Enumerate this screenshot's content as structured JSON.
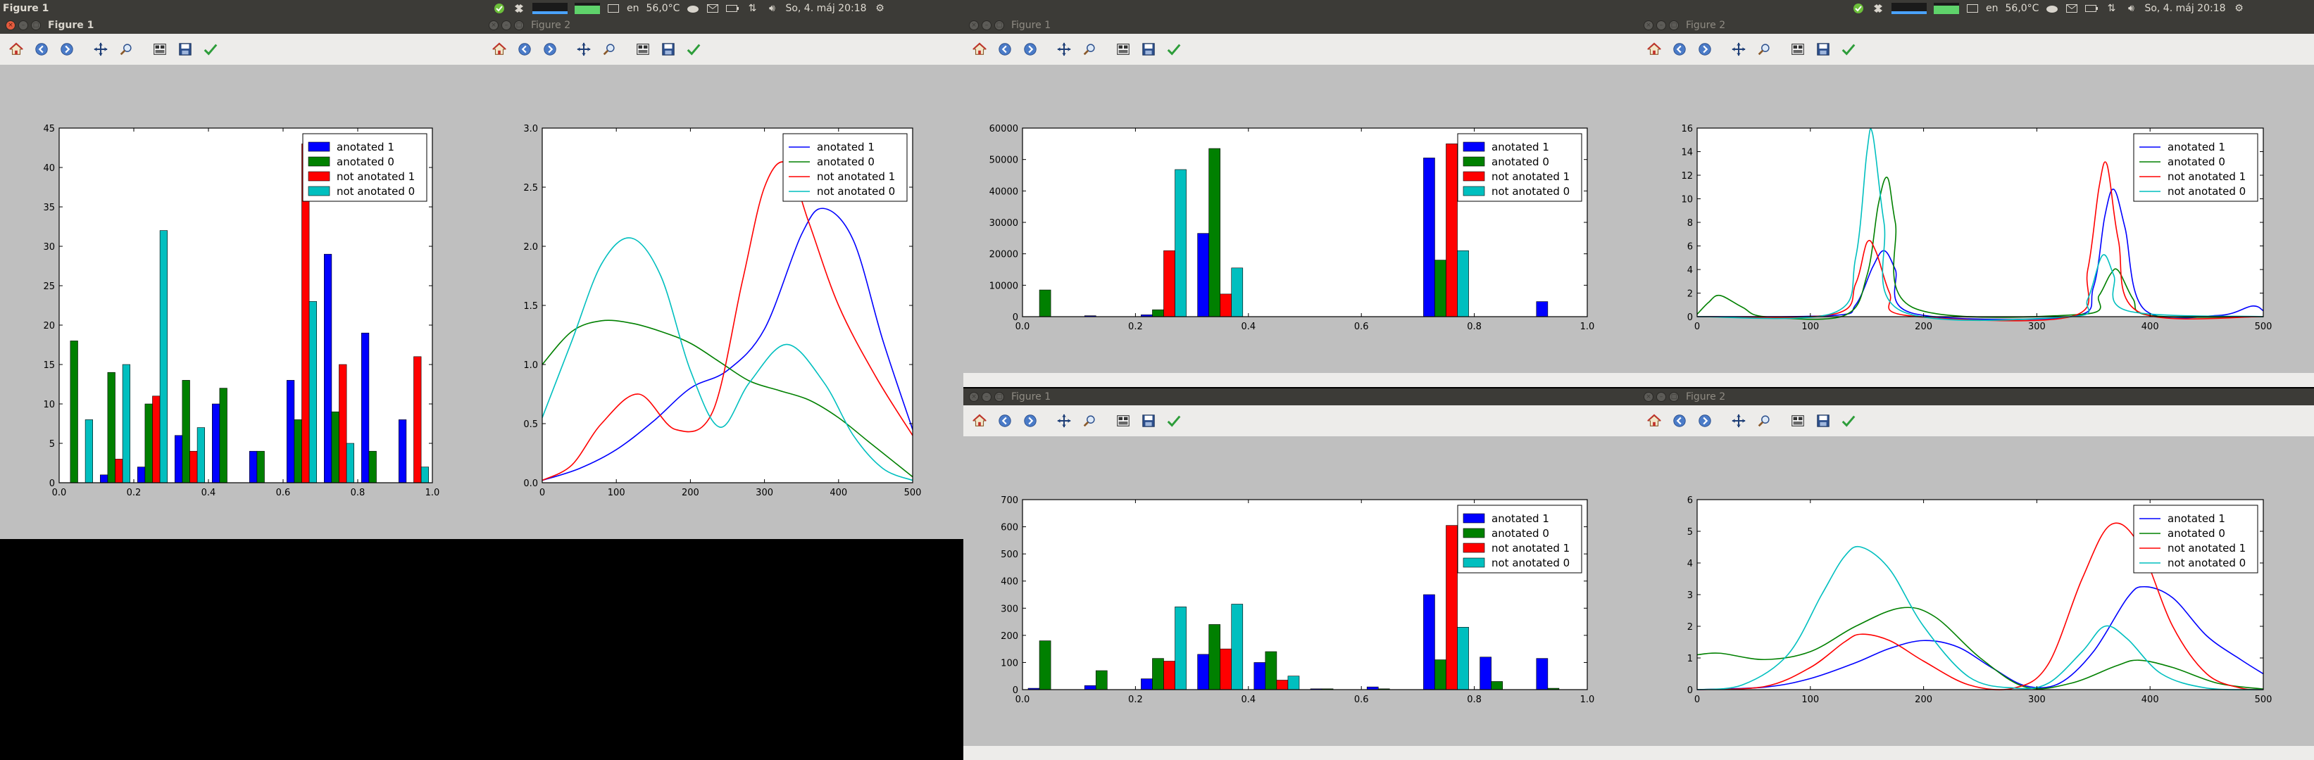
{
  "panel_left": {
    "app_title": "Figure 1",
    "lang": "en",
    "temp": "56,0°C",
    "datetime": "So, 4. máj 20:18"
  },
  "panel_right": {
    "lang": "en",
    "temp": "56,0°C",
    "datetime": "So, 4. máj 20:18"
  },
  "legend_labels": [
    "anotated 1",
    "anotated 0",
    "not anotated 1",
    "not anotated 0"
  ],
  "colors": {
    "anotated 1": "#0000ff",
    "anotated 0": "#008000",
    "not anotated 1": "#ff0000",
    "not anotated 0": "#00bfbf"
  },
  "windows": [
    {
      "title": "Figure 1",
      "active": true
    },
    {
      "title": "Figure 2",
      "active": false
    },
    {
      "title": "Figure 1",
      "active": false
    },
    {
      "title": "Figure 2",
      "active": false
    },
    {
      "title": "Figure 1",
      "active": false
    },
    {
      "title": "Figure 2",
      "active": false
    }
  ],
  "toolbar_icons": [
    "home-icon",
    "back-icon",
    "forward-icon",
    "pan-icon",
    "zoom-icon",
    "subplots-icon",
    "save-icon",
    "check-icon"
  ],
  "chart_data": [
    {
      "type": "bar",
      "window": 0,
      "legend": "top-right",
      "bins": [
        0.05,
        0.15,
        0.25,
        0.35,
        0.45,
        0.55,
        0.65,
        0.75,
        0.85,
        0.95
      ],
      "xlim": [
        0.0,
        1.0
      ],
      "ylim": [
        0,
        45
      ],
      "xticks": [
        "0.0",
        "0.2",
        "0.4",
        "0.6",
        "0.8",
        "1.0"
      ],
      "yticks": [
        "0",
        "5",
        "10",
        "15",
        "20",
        "25",
        "30",
        "35",
        "40",
        "45"
      ],
      "ytick_values": [
        0,
        5,
        10,
        15,
        20,
        25,
        30,
        35,
        40,
        45
      ],
      "series": [
        {
          "name": "anotated 1",
          "values": [
            0,
            1,
            2,
            6,
            10,
            4,
            13,
            29,
            19,
            8
          ]
        },
        {
          "name": "anotated 0",
          "values": [
            18,
            14,
            10,
            13,
            12,
            4,
            8,
            9,
            4,
            0
          ]
        },
        {
          "name": "not anotated 1",
          "values": [
            0,
            3,
            11,
            4,
            0,
            0,
            43,
            15,
            0,
            16
          ]
        },
        {
          "name": "not anotated 0",
          "values": [
            8,
            15,
            32,
            7,
            0,
            0,
            23,
            5,
            0,
            2
          ]
        }
      ]
    },
    {
      "type": "line",
      "window": 1,
      "legend": "top-right",
      "xlim": [
        0,
        500
      ],
      "ylim": [
        0,
        3.0
      ],
      "xticks": [
        "0",
        "100",
        "200",
        "300",
        "400",
        "500"
      ],
      "yticks": [
        "0.0",
        "0.5",
        "1.0",
        "1.5",
        "2.0",
        "2.5",
        "3.0"
      ],
      "ytick_values": [
        0,
        0.5,
        1.0,
        1.5,
        2.0,
        2.5,
        3.0
      ],
      "series": [
        {
          "name": "anotated 1",
          "x": [
            0,
            50,
            100,
            150,
            200,
            250,
            300,
            350,
            380,
            420,
            460,
            500
          ],
          "y": [
            0.02,
            0.12,
            0.28,
            0.52,
            0.8,
            0.95,
            1.3,
            2.1,
            2.32,
            2.05,
            1.2,
            0.45
          ]
        },
        {
          "name": "anotated 0",
          "x": [
            0,
            40,
            80,
            120,
            160,
            200,
            240,
            280,
            320,
            360,
            400,
            440,
            480,
            500
          ],
          "y": [
            1.0,
            1.28,
            1.37,
            1.35,
            1.28,
            1.18,
            1.02,
            0.86,
            0.78,
            0.7,
            0.55,
            0.35,
            0.15,
            0.05
          ]
        },
        {
          "name": "not anotated 1",
          "x": [
            0,
            40,
            80,
            130,
            180,
            230,
            270,
            300,
            330,
            360,
            400,
            450,
            500
          ],
          "y": [
            0.02,
            0.15,
            0.5,
            0.75,
            0.45,
            0.6,
            1.7,
            2.5,
            2.7,
            2.2,
            1.5,
            0.9,
            0.4
          ]
        },
        {
          "name": "not anotated 0",
          "x": [
            0,
            40,
            80,
            120,
            160,
            200,
            240,
            280,
            330,
            380,
            420,
            460,
            500
          ],
          "y": [
            0.55,
            1.2,
            1.85,
            2.07,
            1.75,
            0.95,
            0.47,
            0.85,
            1.17,
            0.85,
            0.4,
            0.12,
            0.02
          ]
        }
      ]
    },
    {
      "type": "bar",
      "window": 2,
      "legend": "top-right",
      "bins": [
        0.05,
        0.15,
        0.25,
        0.35,
        0.45,
        0.55,
        0.65,
        0.75,
        0.85,
        0.95
      ],
      "xlim": [
        0.0,
        1.0
      ],
      "ylim": [
        0,
        60000
      ],
      "xticks": [
        "0.0",
        "0.2",
        "0.4",
        "0.6",
        "0.8",
        "1.0"
      ],
      "yticks": [
        "0",
        "10000",
        "20000",
        "30000",
        "40000",
        "50000",
        "60000"
      ],
      "ytick_values": [
        0,
        10000,
        20000,
        30000,
        40000,
        50000,
        60000
      ],
      "series": [
        {
          "name": "anotated 1",
          "values": [
            0,
            300,
            600,
            26500,
            0,
            0,
            0,
            50500,
            0,
            4800
          ]
        },
        {
          "name": "anotated 0",
          "values": [
            8500,
            0,
            2200,
            53500,
            0,
            0,
            0,
            18000,
            0,
            0
          ]
        },
        {
          "name": "not anotated 1",
          "values": [
            0,
            0,
            21000,
            7200,
            0,
            0,
            0,
            55000,
            0,
            0
          ]
        },
        {
          "name": "not anotated 0",
          "values": [
            0,
            0,
            46800,
            15500,
            0,
            0,
            0,
            21000,
            0,
            0
          ]
        }
      ]
    },
    {
      "type": "line",
      "window": 3,
      "legend": "top-right",
      "xlim": [
        0,
        500
      ],
      "ylim": [
        0,
        16
      ],
      "xticks": [
        "0",
        "100",
        "200",
        "300",
        "400",
        "500"
      ],
      "yticks": [
        "0",
        "2",
        "4",
        "6",
        "8",
        "10",
        "12",
        "14",
        "16"
      ],
      "ytick_values": [
        0,
        2,
        4,
        6,
        8,
        10,
        12,
        14,
        16
      ],
      "series": [
        {
          "name": "anotated 1",
          "x": [
            0,
            120,
            140,
            155,
            165,
            175,
            190,
            330,
            350,
            360,
            368,
            378,
            395,
            460,
            490,
            500
          ],
          "y": [
            0,
            0.1,
            1.0,
            4.2,
            5.6,
            4.0,
            0.3,
            0,
            2.5,
            8.5,
            10.8,
            7.5,
            0.6,
            0.1,
            0.9,
            0.5
          ]
        },
        {
          "name": "anotated 0",
          "x": [
            0,
            10,
            20,
            40,
            60,
            130,
            150,
            160,
            168,
            175,
            190,
            340,
            355,
            365,
            372,
            385,
            400,
            500
          ],
          "y": [
            0.2,
            1.2,
            1.8,
            0.8,
            0,
            0.1,
            3.5,
            9.5,
            11.8,
            8.0,
            0.8,
            0.2,
            1.8,
            3.6,
            3.9,
            1.5,
            0.1,
            0
          ]
        },
        {
          "name": "not anotated 1",
          "x": [
            0,
            120,
            140,
            150,
            158,
            170,
            185,
            330,
            345,
            355,
            362,
            372,
            390,
            500
          ],
          "y": [
            0,
            0.2,
            2.8,
            6.3,
            5.5,
            2.0,
            0.1,
            0,
            4.0,
            11.0,
            12.9,
            6.5,
            0.4,
            0
          ]
        },
        {
          "name": "not anotated 0",
          "x": [
            0,
            120,
            140,
            150,
            155,
            165,
            180,
            330,
            345,
            358,
            368,
            380,
            500
          ],
          "y": [
            0,
            0.3,
            5.0,
            14.0,
            15.5,
            8.0,
            0.5,
            0,
            1.5,
            5.2,
            3.5,
            0.5,
            0
          ]
        }
      ]
    },
    {
      "type": "bar",
      "window": 4,
      "legend": "top-right",
      "bins": [
        0.05,
        0.15,
        0.25,
        0.35,
        0.45,
        0.55,
        0.65,
        0.75,
        0.85,
        0.95
      ],
      "xlim": [
        0.0,
        1.0
      ],
      "ylim": [
        0,
        700
      ],
      "xticks": [
        "0.0",
        "0.2",
        "0.4",
        "0.6",
        "0.8",
        "1.0"
      ],
      "yticks": [
        "0",
        "100",
        "200",
        "300",
        "400",
        "500",
        "600",
        "700"
      ],
      "ytick_values": [
        0,
        100,
        200,
        300,
        400,
        500,
        600,
        700
      ],
      "series": [
        {
          "name": "anotated 1",
          "values": [
            5,
            15,
            40,
            130,
            100,
            3,
            10,
            350,
            120,
            115
          ]
        },
        {
          "name": "anotated 0",
          "values": [
            180,
            70,
            115,
            240,
            140,
            3,
            3,
            110,
            30,
            5
          ]
        },
        {
          "name": "not anotated 1",
          "values": [
            0,
            0,
            105,
            150,
            35,
            0,
            0,
            605,
            0,
            0
          ]
        },
        {
          "name": "not anotated 0",
          "values": [
            0,
            0,
            305,
            315,
            50,
            0,
            0,
            230,
            0,
            0
          ]
        }
      ]
    },
    {
      "type": "line",
      "window": 5,
      "legend": "top-right",
      "xlim": [
        0,
        500
      ],
      "ylim": [
        0,
        6
      ],
      "xticks": [
        "0",
        "100",
        "200",
        "300",
        "400",
        "500"
      ],
      "yticks": [
        "0",
        "1",
        "2",
        "3",
        "4",
        "5",
        "6"
      ],
      "ytick_values": [
        0,
        1,
        2,
        3,
        4,
        5,
        6
      ],
      "series": [
        {
          "name": "anotated 1",
          "x": [
            0,
            60,
            100,
            140,
            170,
            200,
            230,
            260,
            290,
            320,
            350,
            380,
            395,
            420,
            450,
            480,
            500
          ],
          "y": [
            0,
            0.08,
            0.35,
            0.85,
            1.3,
            1.55,
            1.35,
            0.7,
            0.12,
            0.2,
            1.2,
            2.9,
            3.25,
            2.9,
            1.7,
            0.95,
            0.5
          ]
        },
        {
          "name": "anotated 0",
          "x": [
            0,
            20,
            60,
            100,
            140,
            180,
            210,
            250,
            290,
            330,
            370,
            390,
            420,
            460,
            500
          ],
          "y": [
            1.1,
            1.15,
            0.95,
            1.2,
            2.0,
            2.58,
            2.3,
            1.0,
            0.08,
            0.2,
            0.75,
            0.93,
            0.7,
            0.2,
            0.02
          ]
        },
        {
          "name": "not anotated 1",
          "x": [
            0,
            60,
            100,
            130,
            145,
            170,
            200,
            240,
            280,
            310,
            340,
            365,
            390,
            420,
            450,
            480,
            500
          ],
          "y": [
            0,
            0.1,
            0.7,
            1.5,
            1.75,
            1.55,
            0.9,
            0.15,
            0.05,
            0.8,
            3.5,
            5.2,
            4.6,
            2.0,
            0.5,
            0.05,
            0
          ]
        },
        {
          "name": "not anotated 0",
          "x": [
            0,
            40,
            80,
            110,
            130,
            145,
            170,
            200,
            240,
            280,
            310,
            340,
            360,
            380,
            410,
            450,
            500
          ],
          "y": [
            0,
            0.15,
            1.1,
            3.0,
            4.2,
            4.5,
            3.8,
            2.0,
            0.4,
            0.05,
            0.2,
            1.2,
            2.0,
            1.6,
            0.5,
            0.05,
            0
          ]
        }
      ]
    }
  ]
}
